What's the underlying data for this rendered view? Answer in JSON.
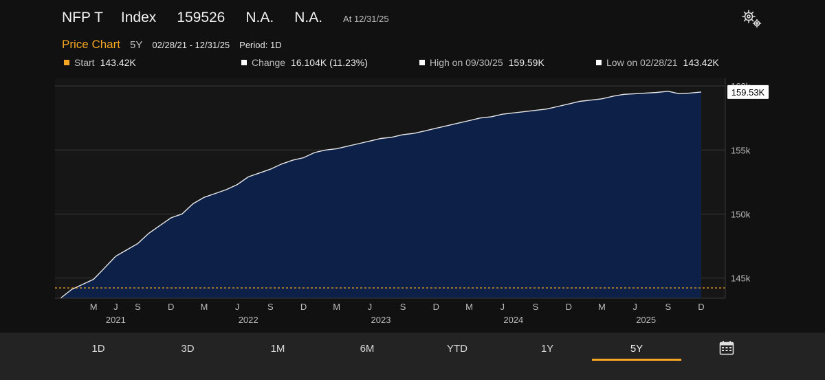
{
  "header": {
    "ticker": "NFP T",
    "type": "Index",
    "value": "159526",
    "change": "N.A.",
    "change_pct": "N.A.",
    "as_of": "At 12/31/25"
  },
  "subheader": {
    "title": "Price Chart",
    "span": "5Y",
    "date_range": "02/28/21 - 12/31/25",
    "period": "Period: 1D"
  },
  "legend": {
    "start_label": "Start",
    "start_value": "143.42K",
    "change_label": "Change",
    "change_value": "16.104K (11.23%)",
    "high_label": "High on 09/30/25",
    "high_value": "159.59K",
    "low_label": "Low on 02/28/21",
    "low_value": "143.42K"
  },
  "colors": {
    "accent": "#f5a623",
    "area_fill": "#0d2148",
    "line": "#e8e8e8",
    "background": "#111111"
  },
  "chart_data": {
    "type": "area",
    "title": "Price Chart",
    "x": [
      "2021-02",
      "2021-03",
      "2021-04",
      "2021-05",
      "2021-06",
      "2021-07",
      "2021-08",
      "2021-09",
      "2021-10",
      "2021-11",
      "2021-12",
      "2022-01",
      "2022-02",
      "2022-03",
      "2022-04",
      "2022-05",
      "2022-06",
      "2022-07",
      "2022-08",
      "2022-09",
      "2022-10",
      "2022-11",
      "2022-12",
      "2023-01",
      "2023-02",
      "2023-03",
      "2023-04",
      "2023-05",
      "2023-06",
      "2023-07",
      "2023-08",
      "2023-09",
      "2023-10",
      "2023-11",
      "2023-12",
      "2024-01",
      "2024-02",
      "2024-03",
      "2024-04",
      "2024-05",
      "2024-06",
      "2024-07",
      "2024-08",
      "2024-09",
      "2024-10",
      "2024-11",
      "2024-12",
      "2025-01",
      "2025-02",
      "2025-03",
      "2025-04",
      "2025-05",
      "2025-06",
      "2025-07",
      "2025-08",
      "2025-09",
      "2025-10",
      "2025-11",
      "2025-12"
    ],
    "values": [
      143.42,
      144.1,
      144.5,
      144.9,
      145.8,
      146.7,
      147.2,
      147.7,
      148.5,
      149.1,
      149.7,
      150.0,
      150.8,
      151.3,
      151.6,
      151.9,
      152.3,
      152.9,
      153.2,
      153.5,
      153.9,
      154.2,
      154.4,
      154.8,
      155.0,
      155.1,
      155.3,
      155.5,
      155.7,
      155.9,
      156.0,
      156.2,
      156.3,
      156.5,
      156.7,
      156.9,
      157.1,
      157.3,
      157.5,
      157.6,
      157.8,
      157.9,
      158.0,
      158.1,
      158.2,
      158.4,
      158.6,
      158.8,
      158.9,
      159.0,
      159.2,
      159.35,
      159.4,
      159.45,
      159.5,
      159.59,
      159.4,
      159.45,
      159.53
    ],
    "last_value_label": "159.53K",
    "start_value": 143.42,
    "y_ticks": [
      145,
      150,
      155,
      160
    ],
    "y_tick_labels": [
      "145k",
      "150k",
      "155k",
      "160k"
    ],
    "ylim": [
      143.42,
      160.6
    ],
    "x_tick_labels": [
      "M",
      "J",
      "S",
      "D",
      "M",
      "J",
      "S",
      "D",
      "M",
      "J",
      "S",
      "D",
      "M",
      "J",
      "S",
      "D",
      "M",
      "J",
      "S",
      "D"
    ],
    "x_tick_months": [
      "2021-05",
      "2021-07",
      "2021-09",
      "2021-12",
      "2022-03",
      "2022-06",
      "2022-09",
      "2022-12",
      "2023-03",
      "2023-06",
      "2023-09",
      "2023-12",
      "2024-03",
      "2024-06",
      "2024-09",
      "2024-12",
      "2025-03",
      "2025-06",
      "2025-09",
      "2025-12"
    ],
    "year_labels": [
      "2021",
      "2022",
      "2023",
      "2024",
      "2025"
    ],
    "year_months": [
      "2021-07",
      "2022-07",
      "2023-07",
      "2024-07",
      "2025-07"
    ],
    "grid": true
  },
  "tabs": [
    {
      "label": "1D"
    },
    {
      "label": "3D"
    },
    {
      "label": "1M"
    },
    {
      "label": "6M"
    },
    {
      "label": "YTD"
    },
    {
      "label": "1Y"
    },
    {
      "label": "5Y"
    }
  ],
  "active_tab": "5Y",
  "icons": {
    "settings": "gear-icon",
    "calendar": "calendar-icon"
  }
}
